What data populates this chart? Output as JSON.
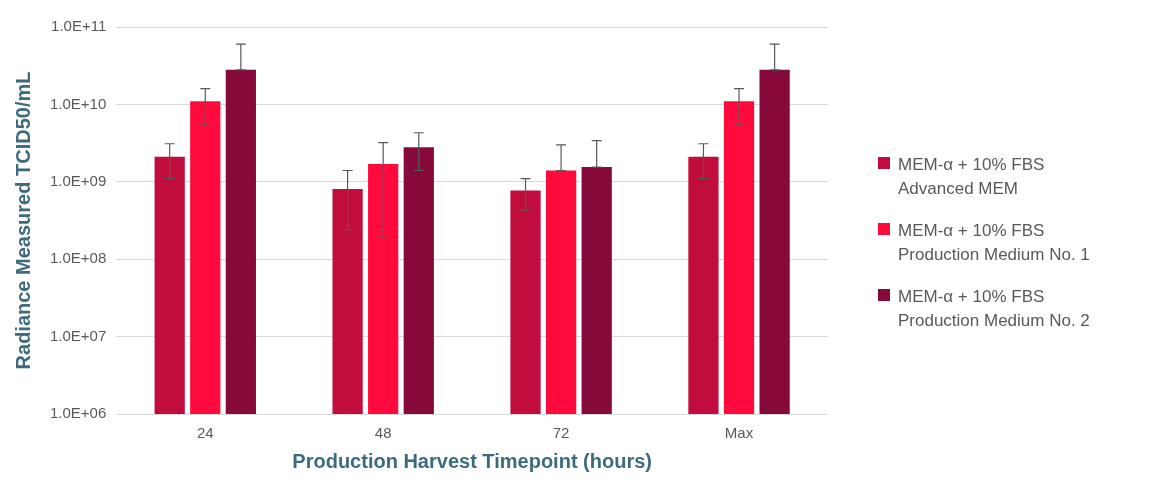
{
  "chart_data": {
    "type": "bar",
    "xlabel": "Production Harvest Timepoint (hours)",
    "ylabel": "Radiance Measured TCID50/mL",
    "categories": [
      "24",
      "48",
      "72",
      "Max"
    ],
    "series": [
      {
        "name": "MEM-α + 10% FBS\nAdvanced MEM",
        "color": "#c00d3d",
        "values": [
          2100000000.0,
          810000000.0,
          770000000.0,
          2100000000.0
        ],
        "errors": [
          [
            1100000000.0,
            3100000000.0
          ],
          [
            240000000.0,
            1400000000.0
          ],
          [
            430000000.0,
            1100000000.0
          ],
          [
            1100000000.0,
            3100000000.0
          ]
        ]
      },
      {
        "name": "MEM-α + 10% FBS\nProduction Medium No. 1",
        "color": "#ff0a3c",
        "values": [
          11000000000.0,
          1700000000.0,
          1400000000.0,
          11000000000.0
        ],
        "errors": [
          [
            5600000000.0,
            16000000000.0
          ],
          [
            200000000.0,
            3200000000.0
          ],
          [
            1400000000.0,
            3000000000.0
          ],
          [
            5600000000.0,
            16000000000.0
          ]
        ]
      },
      {
        "name": "MEM-α + 10% FBS\nProduction Medium No. 2",
        "color": "#850a3a",
        "values": [
          28000000000.0,
          2800000000.0,
          1550000000.0,
          28000000000.0
        ],
        "errors": [
          [
            28000000000.0,
            60000000000.0
          ],
          [
            1400000000.0,
            4300000000.0
          ],
          [
            1550000000.0,
            3400000000.0
          ],
          [
            28000000000.0,
            60000000000.0
          ]
        ]
      }
    ],
    "log": "y",
    "ylim": [
      1000000.0,
      100000000000.0
    ],
    "yticks": [
      {
        "value": 1000000.0,
        "label": "1.0E+06"
      },
      {
        "value": 10000000.0,
        "label": "1.0E+07"
      },
      {
        "value": 100000000.0,
        "label": "1.0E+08"
      },
      {
        "value": 1000000000.0,
        "label": "1.0E+09"
      },
      {
        "value": 10000000000.0,
        "label": "1.0E+10"
      },
      {
        "value": 100000000000.0,
        "label": "1.0E+11"
      }
    ],
    "grid": "y",
    "legend": "right"
  }
}
